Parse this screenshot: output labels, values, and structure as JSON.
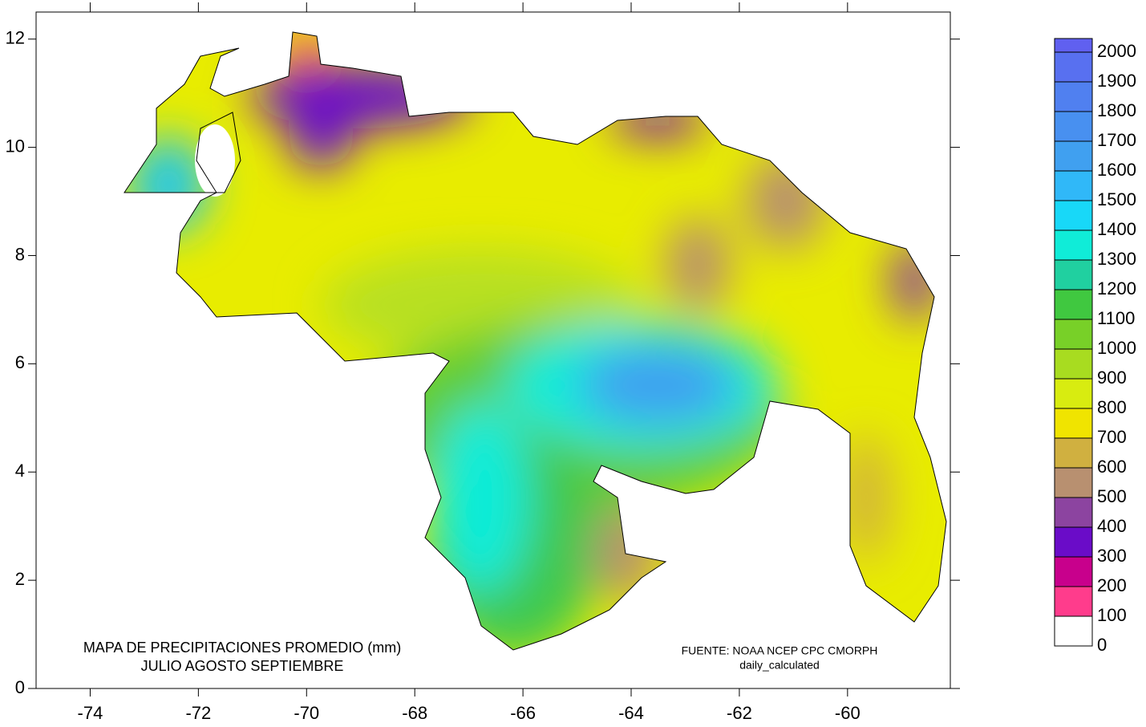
{
  "map": {
    "title": [
      "MAPA DE PRECIPITACIONES PROMEDIO (mm)",
      "JULIO AGOSTO SEPTIEMBRE"
    ],
    "source": [
      "FUENTE: NOAA NCEP CPC CMORPH",
      "daily_calculated"
    ],
    "xlim": [
      -75,
      -58.1
    ],
    "xticks": [
      -74,
      -72,
      -70,
      -68,
      -66,
      -64,
      -62,
      -60
    ],
    "ylim": [
      0,
      12.5
    ],
    "yticks": [
      0,
      2,
      4,
      6,
      8,
      10,
      12
    ],
    "colorbar": {
      "levels": [
        0,
        100,
        200,
        300,
        400,
        500,
        600,
        700,
        800,
        900,
        1000,
        1100,
        1200,
        1300,
        1400,
        1500,
        1600,
        1700,
        1800,
        1900,
        2000
      ],
      "colors": [
        "#ffffff",
        "#ff3c8c",
        "#c8008c",
        "#6a0cc8",
        "#8c44a0",
        "#b89070",
        "#d0b040",
        "#f0e400",
        "#d8ec10",
        "#a8dc20",
        "#78d028",
        "#40c840",
        "#20d0a0",
        "#10ecd8",
        "#18d8f8",
        "#30b8f8",
        "#40a0f0",
        "#4890f0",
        "#5080f0",
        "#5870f0",
        "#6060f0"
      ]
    }
  }
}
